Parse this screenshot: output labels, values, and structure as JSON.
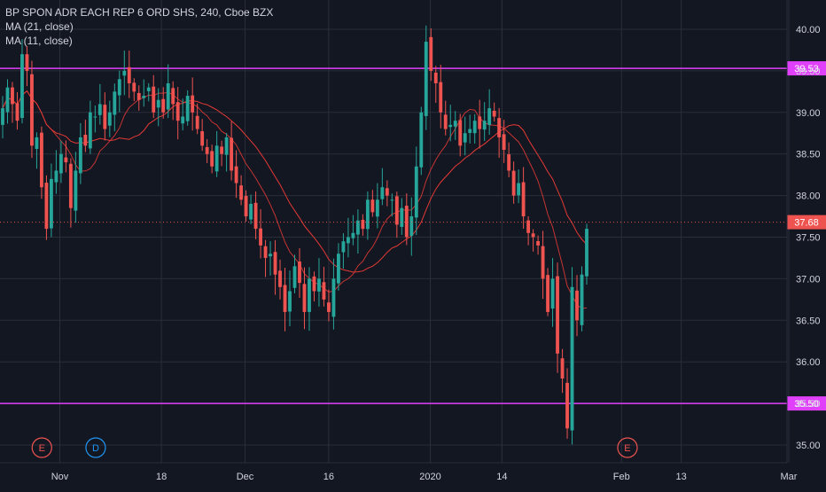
{
  "header": {
    "symbol_line": "BP SPON ADR EACH REP 6 ORD SHS, 240, Cboe BZX",
    "indicators": [
      "MA (21, close)",
      "MA (11, close)"
    ]
  },
  "colors": {
    "background": "#131722",
    "grid": "#2a2e39",
    "up": "#26a69a",
    "down": "#ef5350",
    "ma": "#e53935",
    "hline": "#e040fb",
    "price_line": "#ef5350",
    "axis_text": "#d1d4dc",
    "event_E": "#ef5350",
    "event_D": "#2196f3"
  },
  "chart_data": {
    "type": "candlestick",
    "title": "BP SPON ADR EACH REP 6 ORD SHS, 240, Cboe BZX",
    "y_ticks": [
      "35.00",
      "35.50",
      "36.00",
      "36.50",
      "37.00",
      "37.50",
      "38.00",
      "38.50",
      "39.00",
      "39.50",
      "40.00"
    ],
    "y_range": [
      34.9,
      40.2
    ],
    "x_labels": [
      {
        "label": "Nov",
        "date": "2019-11-01"
      },
      {
        "label": "18",
        "date": "2019-11-18"
      },
      {
        "label": "Dec",
        "date": "2019-12-02"
      },
      {
        "label": "16",
        "date": "2019-12-16"
      },
      {
        "label": "2020",
        "date": "2020-01-02"
      },
      {
        "label": "14",
        "date": "2020-01-14"
      },
      {
        "label": "Feb",
        "date": "2020-02-03"
      },
      {
        "label": "13",
        "date": "2020-02-13"
      },
      {
        "label": "Mar",
        "date": "2020-03-02"
      }
    ],
    "horizontal_lines": [
      {
        "value": 39.53,
        "label": "39.53"
      },
      {
        "value": 35.5,
        "label": "35.50"
      }
    ],
    "last_price": {
      "value": 37.68,
      "label": "37.68"
    },
    "events": [
      {
        "type": "E",
        "date": "2019-10-29"
      },
      {
        "type": "D",
        "date": "2019-11-07"
      },
      {
        "type": "E",
        "date": "2020-02-04"
      }
    ],
    "closes": [
      39.05,
      39.3,
      39.1,
      38.9,
      39.7,
      39.5,
      38.6,
      38.7,
      38.1,
      37.6,
      38.2,
      38.3,
      38.5,
      38.4,
      37.85,
      38.3,
      38.7,
      38.6,
      39.0,
      38.95,
      39.1,
      38.8,
      39.0,
      39.25,
      39.4,
      39.5,
      39.35,
      39.25,
      39.15,
      39.2,
      39.3,
      39.0,
      39.15,
      39.0,
      39.35,
      39.1,
      38.9,
      38.95,
      39.2,
      39.0,
      38.8,
      38.6,
      38.5,
      38.35,
      38.6,
      38.5,
      38.7,
      38.3,
      38.15,
      37.95,
      37.75,
      37.9,
      37.6,
      37.4,
      37.25,
      37.3,
      37.05,
      36.9,
      36.6,
      36.85,
      37.15,
      36.95,
      36.6,
      37.0,
      36.85,
      37.0,
      36.75,
      36.6,
      37.0,
      37.3,
      37.45,
      37.5,
      37.55,
      37.7,
      37.6,
      37.95,
      37.8,
      37.95,
      38.1,
      38.0,
      37.95,
      37.65,
      37.85,
      37.5,
      37.75,
      38.35,
      39.0,
      39.85,
      39.5,
      39.35,
      39.0,
      38.8,
      38.85,
      38.9,
      38.6,
      38.75,
      38.8,
      38.9,
      38.8,
      38.9,
      39.05,
      38.95,
      38.7,
      38.55,
      38.3,
      38.0,
      38.15,
      37.75,
      37.55,
      37.5,
      37.4,
      37.0,
      36.6,
      37.0,
      36.1,
      35.8,
      35.2,
      36.9,
      36.5,
      37.05,
      37.6
    ]
  },
  "ma_legend_order": [
    "MA (21, close)",
    "MA (11, close)"
  ]
}
